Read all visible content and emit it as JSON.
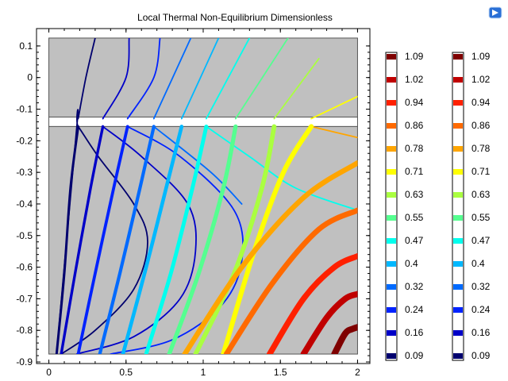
{
  "chart_data": {
    "type": "line",
    "title": "Local Thermal Non-Equilibrium Dimensionless",
    "xlabel": "",
    "ylabel": "",
    "xlim": [
      -0.08,
      2.08
    ],
    "ylim": [
      -0.905,
      0.155
    ],
    "xticks": [
      0,
      0.5,
      1,
      1.5,
      2
    ],
    "xtick_labels": [
      "0",
      "0.5",
      "1",
      "1.5",
      "2"
    ],
    "yticks": [
      0.1,
      0,
      -0.1,
      -0.2,
      -0.3,
      -0.4,
      -0.5,
      -0.6,
      -0.7,
      -0.8,
      -0.9
    ],
    "ytick_labels": [
      "0.1",
      "0",
      "-0.1",
      "-0.2",
      "-0.3",
      "-0.4",
      "-0.5",
      "-0.6",
      "-0.7",
      "-0.8",
      "-0.9"
    ],
    "grid": false,
    "regions": [
      {
        "name": "upper-block",
        "x": [
          0,
          2
        ],
        "y": [
          -0.125,
          0.125
        ],
        "color": "#c0c0c0"
      },
      {
        "name": "gap",
        "x": [
          0,
          2
        ],
        "y": [
          -0.155,
          -0.125
        ],
        "color": "#ffffff"
      },
      {
        "name": "lower-block",
        "x": [
          0,
          2
        ],
        "y": [
          -0.875,
          -0.155
        ],
        "color": "#c0c0c0"
      }
    ],
    "legend_levels": [
      1.09,
      1.02,
      0.94,
      0.86,
      0.78,
      0.71,
      0.63,
      0.55,
      0.47,
      0.4,
      0.32,
      0.24,
      0.16,
      0.09
    ],
    "legend_colors": [
      "#7f0000",
      "#c00000",
      "#ff2000",
      "#ff6a00",
      "#ffa500",
      "#ffff00",
      "#aaff40",
      "#55ff90",
      "#00ffee",
      "#00b8ff",
      "#006aff",
      "#0022ff",
      "#0000c8",
      "#00006e"
    ],
    "legends": [
      {
        "name": "thick-lines-legend",
        "labels": [
          "1.09",
          "1.02",
          "0.94",
          "0.86",
          "0.78",
          "0.71",
          "0.63",
          "0.55",
          "0.47",
          "0.4",
          "0.32",
          "0.24",
          "0.16",
          "0.09"
        ]
      },
      {
        "name": "thin-lines-legend",
        "labels": [
          "1.09",
          "1.02",
          "0.94",
          "0.86",
          "0.78",
          "0.71",
          "0.63",
          "0.55",
          "0.47",
          "0.4",
          "0.32",
          "0.24",
          "0.16",
          "0.09"
        ]
      }
    ],
    "thick_series": [
      {
        "level": 0.09,
        "color": "#00006e",
        "x": [
          0.05,
          0.1,
          0.14,
          0.19
        ],
        "y": [
          -0.875,
          -0.62,
          -0.35,
          -0.155
        ]
      },
      {
        "level": 0.16,
        "color": "#0000c8",
        "x": [
          0.08,
          0.17,
          0.27,
          0.35
        ],
        "y": [
          -0.875,
          -0.62,
          -0.35,
          -0.155
        ]
      },
      {
        "level": 0.24,
        "color": "#0022ff",
        "x": [
          0.19,
          0.3,
          0.42,
          0.51
        ],
        "y": [
          -0.875,
          -0.62,
          -0.35,
          -0.155
        ]
      },
      {
        "level": 0.32,
        "color": "#006aff",
        "x": [
          0.33,
          0.46,
          0.59,
          0.68
        ],
        "y": [
          -0.875,
          -0.62,
          -0.35,
          -0.155
        ]
      },
      {
        "level": 0.4,
        "color": "#00b8ff",
        "x": [
          0.48,
          0.62,
          0.76,
          0.86
        ],
        "y": [
          -0.875,
          -0.62,
          -0.35,
          -0.155
        ]
      },
      {
        "level": 0.47,
        "color": "#00ffee",
        "x": [
          0.63,
          0.79,
          0.93,
          1.02
        ],
        "y": [
          -0.875,
          -0.62,
          -0.35,
          -0.155
        ]
      },
      {
        "level": 0.55,
        "color": "#55ff90",
        "x": [
          0.78,
          0.97,
          1.13,
          1.21
        ],
        "y": [
          -0.875,
          -0.62,
          -0.35,
          -0.155
        ]
      },
      {
        "level": 0.63,
        "color": "#aaff40",
        "x": [
          0.95,
          1.2,
          1.38,
          1.46
        ],
        "y": [
          -0.875,
          -0.62,
          -0.35,
          -0.155
        ]
      },
      {
        "level": 0.71,
        "color": "#ffff00",
        "x": [
          1.13,
          1.33,
          1.52,
          1.7
        ],
        "y": [
          -0.875,
          -0.55,
          -0.3,
          -0.155
        ]
      },
      {
        "level": 0.78,
        "color": "#ffa500",
        "x": [
          0.88,
          1.25,
          1.65,
          2.0
        ],
        "y": [
          -0.875,
          -0.6,
          -0.38,
          -0.27
        ]
      },
      {
        "level": 0.86,
        "color": "#ff6a00",
        "x": [
          1.15,
          1.45,
          1.75,
          2.0
        ],
        "y": [
          -0.875,
          -0.65,
          -0.48,
          -0.42
        ]
      },
      {
        "level": 0.94,
        "color": "#ff2000",
        "x": [
          1.43,
          1.65,
          1.85,
          2.0
        ],
        "y": [
          -0.875,
          -0.7,
          -0.6,
          -0.565
        ]
      },
      {
        "level": 1.02,
        "color": "#c00000",
        "x": [
          1.65,
          1.8,
          1.92,
          2.0
        ],
        "y": [
          -0.875,
          -0.76,
          -0.7,
          -0.685
        ]
      },
      {
        "level": 1.09,
        "color": "#7f0000",
        "x": [
          1.85,
          1.92,
          1.97,
          2.0
        ],
        "y": [
          -0.875,
          -0.81,
          -0.795,
          -0.79
        ]
      }
    ],
    "thin_series": [
      {
        "level": 0.09,
        "color": "#00006e",
        "x": [
          0.05,
          0.18,
          0.19,
          0.32,
          0.55,
          0.64,
          0.55,
          0.3,
          0.08
        ],
        "y": [
          -0.875,
          -0.16,
          -0.155,
          -0.25,
          -0.4,
          -0.52,
          -0.67,
          -0.8,
          -0.875
        ]
      },
      {
        "level": 0.09,
        "color": "#00006e",
        "x": [
          0.19,
          0.24,
          0.3
        ],
        "y": [
          -0.13,
          0.0,
          0.125
        ]
      },
      {
        "level": 0.16,
        "color": "#0000c8",
        "x": [
          0.35,
          0.6,
          0.9,
          0.95,
          0.85,
          0.55,
          0.18
        ],
        "y": [
          -0.155,
          -0.25,
          -0.4,
          -0.55,
          -0.7,
          -0.82,
          -0.875
        ]
      },
      {
        "level": 0.16,
        "color": "#0000c8",
        "x": [
          0.35,
          0.5,
          0.52
        ],
        "y": [
          -0.13,
          0.0,
          0.125
        ]
      },
      {
        "level": 0.24,
        "color": "#0022ff",
        "x": [
          0.51,
          0.85,
          1.2,
          1.25,
          1.12,
          0.8,
          0.4
        ],
        "y": [
          -0.155,
          -0.25,
          -0.42,
          -0.58,
          -0.72,
          -0.83,
          -0.875
        ]
      },
      {
        "level": 0.24,
        "color": "#0022ff",
        "x": [
          0.51,
          0.68,
          0.72
        ],
        "y": [
          -0.13,
          0.0,
          0.125
        ]
      },
      {
        "level": 0.32,
        "color": "#006aff",
        "x": [
          0.68,
          0.92
        ],
        "y": [
          -0.13,
          0.125
        ]
      },
      {
        "level": 0.4,
        "color": "#00b8ff",
        "x": [
          0.86,
          1.1
        ],
        "y": [
          -0.13,
          0.125
        ]
      },
      {
        "level": 0.47,
        "color": "#00ffee",
        "x": [
          1.02,
          1.3
        ],
        "y": [
          -0.13,
          0.125
        ]
      },
      {
        "level": 0.55,
        "color": "#55ff90",
        "x": [
          1.21,
          1.55
        ],
        "y": [
          -0.13,
          0.125
        ]
      },
      {
        "level": 0.63,
        "color": "#aaff40",
        "x": [
          1.46,
          1.75
        ],
        "y": [
          -0.13,
          0.06
        ]
      },
      {
        "level": 0.71,
        "color": "#ffff00",
        "x": [
          1.7,
          2.0
        ],
        "y": [
          -0.13,
          -0.06
        ]
      },
      {
        "level": 0.78,
        "color": "#ffa500",
        "x": [
          1.7,
          2.0
        ],
        "y": [
          -0.155,
          -0.19
        ]
      },
      {
        "level": 0.32,
        "color": "#006aff",
        "x": [
          0.68,
          1.05,
          1.25
        ],
        "y": [
          -0.155,
          -0.3,
          -0.4
        ]
      },
      {
        "level": 0.47,
        "color": "#00ffee",
        "x": [
          1.02,
          1.3,
          1.6,
          2.0
        ],
        "y": [
          -0.155,
          -0.25,
          -0.35,
          -0.42
        ]
      }
    ]
  }
}
